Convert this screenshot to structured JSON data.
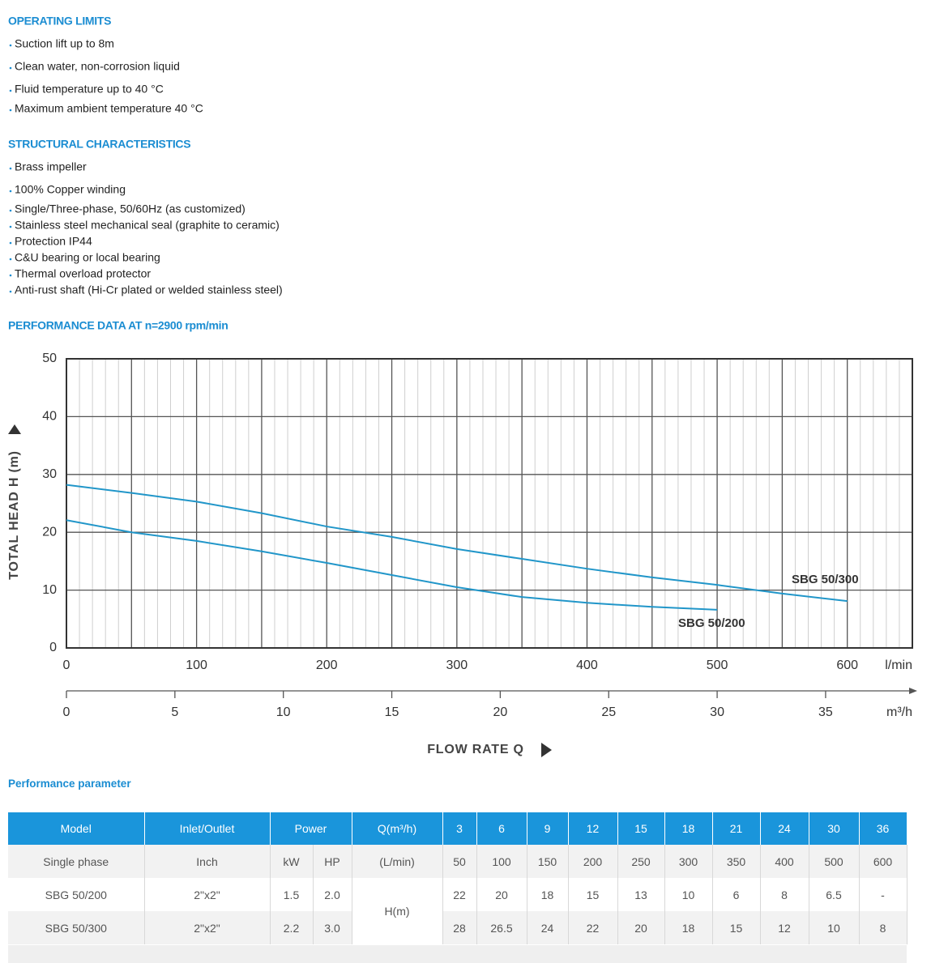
{
  "sections": [
    {
      "title": "OPERATING LIMITS",
      "items": [
        "Suction lift up to 8m",
        "Clean water, non-corrosion liquid",
        "Fluid temperature up to 40 °C",
        "Maximum ambient temperature 40 °C"
      ]
    },
    {
      "title": "STRUCTURAL CHARACTERISTICS",
      "items": [
        "Brass impeller",
        "100% Copper winding",
        "Single/Three-phase, 50/60Hz (as customized)",
        "Stainless steel mechanical seal (graphite to ceramic)",
        "Protection IP44",
        "C&U bearing or local bearing",
        "Thermal overload protector",
        "Anti-rust shaft (Hi-Cr plated or welded stainless steel)"
      ]
    }
  ],
  "chart_data": {
    "type": "line",
    "title": "PERFORMANCE DATA AT n=2900 rpm/min",
    "ylabel": "TOTAL HEAD H (m)",
    "xlabel": "FLOW RATE Q",
    "x_unit": "l/min",
    "x2_unit": "m³/h",
    "x": [
      0,
      50,
      100,
      150,
      200,
      250,
      300,
      350,
      400,
      450,
      500,
      550,
      600
    ],
    "series": [
      {
        "name": "SBG 50/300",
        "color": "#2196c9",
        "values": [
          28.2,
          26.8,
          25.3,
          23.3,
          21.0,
          19.2,
          17.1,
          15.4,
          13.7,
          12.2,
          10.9,
          9.4,
          8.1
        ]
      },
      {
        "name": "SBG 50/200",
        "color": "#2196c9",
        "values": [
          22.1,
          20.0,
          18.5,
          16.7,
          14.7,
          12.6,
          10.5,
          8.8,
          7.8,
          7.1,
          6.6,
          null,
          null
        ]
      }
    ],
    "xlim": [
      0,
      650
    ],
    "xticks": [
      0,
      100,
      200,
      300,
      400,
      500,
      600
    ],
    "xgrid": [
      0,
      50,
      100,
      150,
      200,
      250,
      300,
      350,
      400,
      450,
      500,
      550,
      600,
      650
    ],
    "x2lim": [
      0,
      39
    ],
    "x2ticks": [
      0,
      5,
      10,
      15,
      20,
      25,
      30,
      35
    ],
    "ylim": [
      0,
      50
    ],
    "yticks": [
      0,
      10,
      20,
      30,
      40,
      50
    ],
    "grid": true
  },
  "table": {
    "title": "Performance parameter",
    "header": [
      "Model",
      "Inlet/Outlet",
      "Power",
      "Q(m³/h)",
      "3",
      "6",
      "9",
      "12",
      "15",
      "18",
      "21",
      "24",
      "30",
      "36"
    ],
    "rows": [
      [
        "Single phase",
        "Inch",
        "kW",
        "HP",
        "(L/min)",
        "50",
        "100",
        "150",
        "200",
        "250",
        "300",
        "350",
        "400",
        "500",
        "600"
      ],
      [
        "SBG 50/200",
        "2\"x2\"",
        "1.5",
        "2.0",
        "22",
        "20",
        "18",
        "15",
        "13",
        "10",
        "6",
        "8",
        "6.5",
        "-"
      ],
      [
        "SBG 50/300",
        "2\"x2\"",
        "2.2",
        "3.0",
        "28",
        "26.5",
        "24",
        "22",
        "20",
        "18",
        "15",
        "12",
        "10",
        "8"
      ]
    ],
    "head_label": "H(m)"
  }
}
